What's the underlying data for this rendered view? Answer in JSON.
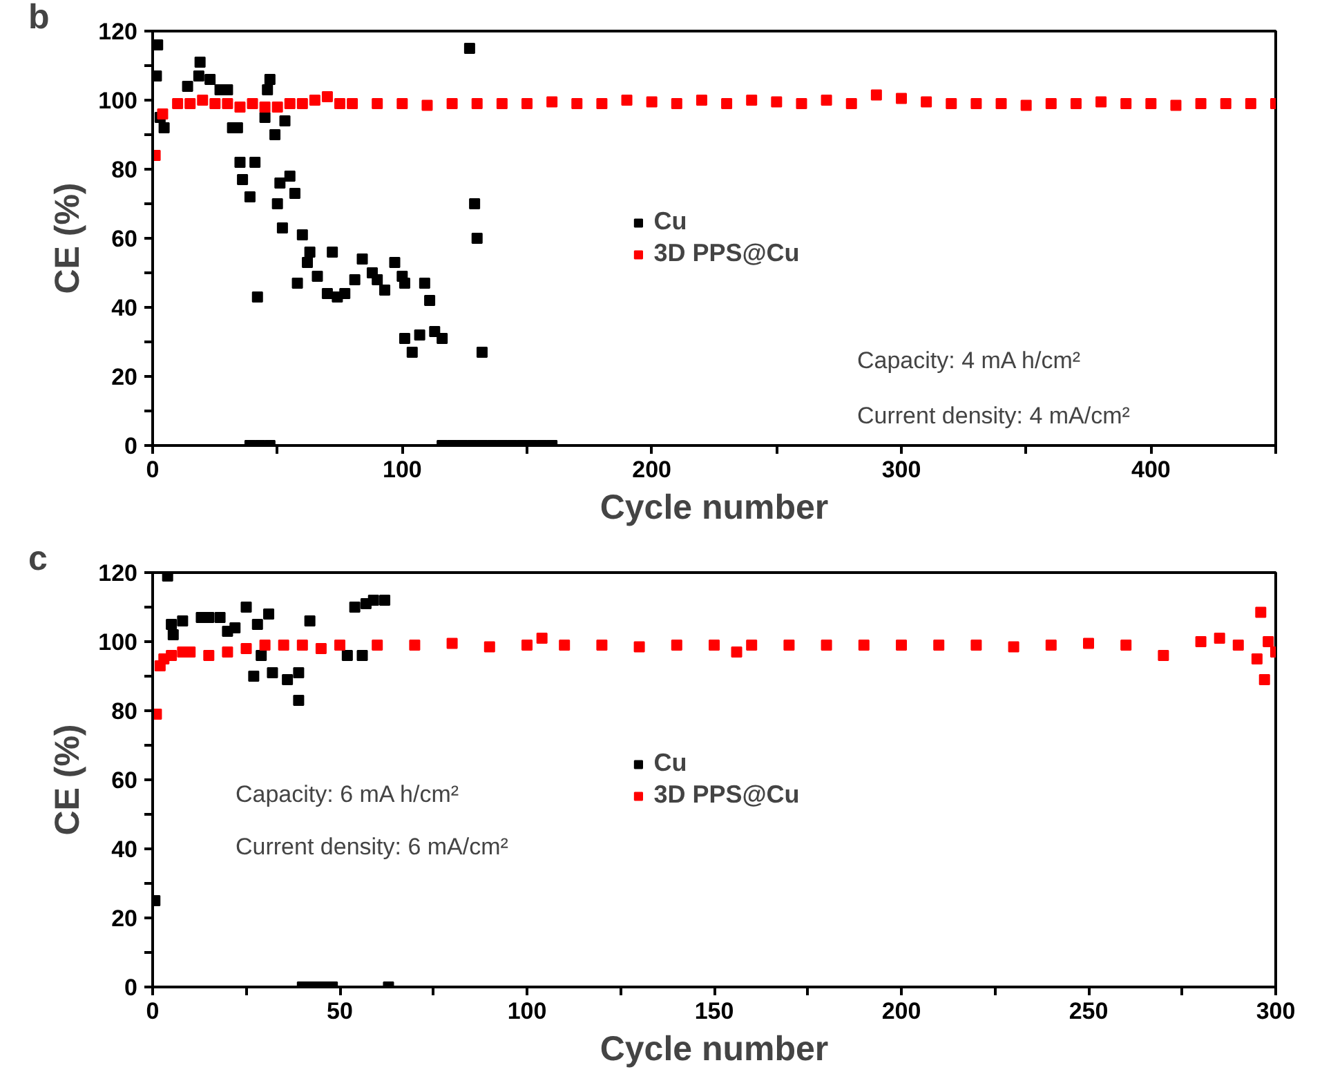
{
  "chart_data": [
    {
      "type": "scatter",
      "xlabel": "Cycle number",
      "ylabel": "CE (%)",
      "xlim": [
        0,
        450
      ],
      "ylim": [
        0,
        120
      ],
      "xticks": [
        0,
        {
          "value": 50,
          "label": null
        },
        100,
        {
          "value": 150,
          "label": null
        },
        200,
        {
          "value": 250,
          "label": null
        },
        300,
        {
          "value": 350,
          "label": null
        },
        400,
        {
          "value": 450,
          "label": null
        }
      ],
      "yticks": [
        0,
        {
          "value": 10,
          "label": null
        },
        20,
        {
          "value": 30,
          "label": null
        },
        40,
        {
          "value": 50,
          "label": null
        },
        60,
        {
          "value": 70,
          "label": null
        },
        80,
        {
          "value": 90,
          "label": null
        },
        100,
        {
          "value": 110,
          "label": null
        },
        120
      ],
      "grid": false,
      "legend": "center",
      "marker": "square",
      "annotations": [
        "b",
        "Capacity: 4 mA h/cm²",
        "Current density: 4 mA/cm²"
      ],
      "series": [
        {
          "name": "Cu",
          "color": "#000000",
          "x": [
            2,
            1.5,
            4.6,
            3,
            14,
            19,
            18.5,
            23,
            27,
            30,
            32,
            34,
            47,
            46,
            45,
            49,
            53,
            35,
            41,
            36,
            39,
            42,
            51,
            55,
            50,
            57,
            52,
            60,
            63,
            62,
            72,
            58,
            66,
            70,
            74,
            77,
            81,
            84,
            88,
            93,
            90,
            97,
            100,
            101,
            109,
            111,
            101,
            104,
            107,
            113,
            116,
            127,
            129,
            130,
            132,
            39,
            43,
            47,
            116,
            120,
            124,
            128,
            132,
            136,
            140,
            144,
            148,
            152,
            156,
            160
          ],
          "values": [
            116,
            107,
            92,
            95,
            104,
            111,
            107,
            106,
            103,
            103,
            92,
            92,
            106,
            103,
            95,
            90,
            94,
            82,
            82,
            77,
            72,
            43,
            76,
            78,
            70,
            73,
            63,
            61,
            56,
            53,
            56,
            47,
            49,
            44,
            43,
            44,
            48,
            54,
            50,
            45,
            48,
            53,
            49,
            47,
            47,
            42,
            31,
            27,
            32,
            33,
            31,
            115,
            70,
            60,
            27,
            0,
            0,
            0,
            0,
            0,
            0,
            0,
            0,
            0,
            0,
            0,
            0,
            0,
            0,
            0
          ]
        },
        {
          "name": "3D PPS@Cu",
          "color": "#ff0000",
          "x": [
            1,
            4,
            10,
            15,
            20,
            25,
            30,
            35,
            40,
            45,
            50,
            55,
            60,
            65,
            70,
            75,
            80,
            90,
            100,
            110,
            120,
            130,
            140,
            150,
            160,
            170,
            180,
            190,
            200,
            210,
            220,
            230,
            240,
            250,
            260,
            270,
            280,
            290,
            300,
            310,
            320,
            330,
            340,
            350,
            360,
            370,
            380,
            390,
            400,
            410,
            420,
            430,
            440,
            450
          ],
          "values": [
            84,
            96,
            99,
            99,
            100,
            99,
            99,
            98,
            99,
            98,
            98,
            99,
            99,
            100,
            101,
            99,
            99,
            99,
            99,
            98.5,
            99,
            99,
            99,
            99,
            99.5,
            99,
            99,
            100,
            99.5,
            99,
            100,
            99,
            100,
            99.5,
            99,
            100,
            99,
            101.5,
            100.5,
            99.5,
            99,
            99,
            99,
            98.5,
            99,
            99,
            99.5,
            99,
            99,
            98.5,
            99,
            99,
            99,
            99
          ]
        }
      ]
    },
    {
      "type": "scatter",
      "xlabel": "Cycle number",
      "ylabel": "CE (%)",
      "xlim": [
        0,
        300
      ],
      "ylim": [
        0,
        120
      ],
      "xticks": [
        0,
        {
          "value": 25,
          "label": null
        },
        50,
        {
          "value": 75,
          "label": null
        },
        100,
        {
          "value": 125,
          "label": null
        },
        150,
        {
          "value": 175,
          "label": null
        },
        200,
        {
          "value": 225,
          "label": null
        },
        250,
        {
          "value": 275,
          "label": null
        },
        300
      ],
      "yticks": [
        0,
        {
          "value": 10,
          "label": null
        },
        20,
        {
          "value": 30,
          "label": null
        },
        40,
        {
          "value": 50,
          "label": null
        },
        60,
        {
          "value": 70,
          "label": null
        },
        80,
        {
          "value": 90,
          "label": null
        },
        100,
        {
          "value": 110,
          "label": null
        },
        120
      ],
      "grid": false,
      "legend": "center",
      "marker": "square",
      "annotations": [
        "c",
        "Capacity: 6 mA h/cm²",
        "Current density: 6 mA/cm²"
      ],
      "series": [
        {
          "name": "Cu",
          "color": "#000000",
          "x": [
            0.6,
            4,
            5,
            8,
            5.5,
            13,
            15,
            18,
            20,
            22,
            25,
            28,
            31,
            29,
            27,
            32,
            36,
            39,
            39,
            42,
            52,
            56,
            54,
            57,
            59,
            62,
            40,
            42,
            44,
            46,
            48,
            63
          ],
          "values": [
            25,
            119,
            105,
            106,
            102,
            107,
            107,
            107,
            103,
            104,
            110,
            105,
            108,
            96,
            90,
            91,
            89,
            91,
            83,
            106,
            96,
            96,
            110,
            111,
            112,
            112,
            0,
            0,
            0,
            0,
            0,
            0
          ]
        },
        {
          "name": "3D PPS@Cu",
          "color": "#ff0000",
          "x": [
            1,
            2,
            3,
            5,
            8,
            10,
            15,
            20,
            25,
            30,
            35,
            40,
            45,
            50,
            60,
            70,
            80,
            90,
            100,
            104,
            110,
            120,
            130,
            140,
            150,
            156,
            160,
            170,
            180,
            190,
            200,
            210,
            220,
            230,
            240,
            250,
            260,
            270,
            280,
            285,
            290,
            295,
            296,
            297,
            298,
            300
          ],
          "values": [
            79,
            93,
            95,
            96,
            97,
            97,
            96,
            97,
            98,
            99,
            99,
            99,
            98,
            99,
            99,
            99,
            99.5,
            98.5,
            99,
            101,
            99,
            99,
            98.5,
            99,
            99,
            97,
            99,
            99,
            99,
            99,
            99,
            99,
            99,
            98.5,
            99,
            99.5,
            99,
            96,
            100,
            101,
            99,
            95,
            108.5,
            89,
            100,
            97
          ]
        }
      ]
    }
  ]
}
